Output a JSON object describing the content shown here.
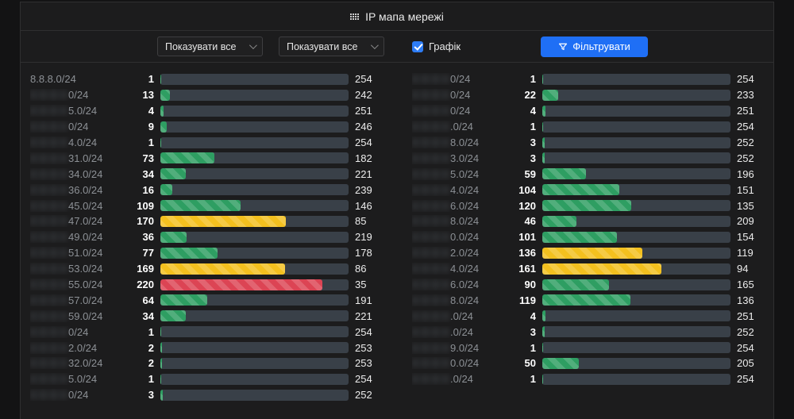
{
  "header": {
    "title": "IP мапа мережі",
    "icon": "grid-icon"
  },
  "toolbar": {
    "select1": {
      "value": "Показувати все"
    },
    "select2": {
      "value": "Показувати все"
    },
    "checkbox": {
      "label": "Графік",
      "checked": true
    },
    "filter_button": {
      "label": "Фільтрувати",
      "icon": "funnel-icon"
    }
  },
  "colors": {
    "green": "#2e9e62",
    "yellow": "#f3c01f",
    "red": "#dc4454",
    "track": "#394048",
    "accent_blue": "#1f6ff5"
  },
  "thresholds": {
    "yellow_min": 128,
    "red_min": 200
  },
  "scale_max": 255,
  "columns": {
    "left": [
      {
        "label": "8.8.8.0/24",
        "redacted": false,
        "used": 1,
        "free": 254
      },
      {
        "label": "0/24",
        "redacted": true,
        "used": 13,
        "free": 242
      },
      {
        "label": "5.0/24",
        "redacted": true,
        "used": 4,
        "free": 251
      },
      {
        "label": "0/24",
        "redacted": true,
        "used": 9,
        "free": 246
      },
      {
        "label": "4.0/24",
        "redacted": true,
        "used": 1,
        "free": 254
      },
      {
        "label": "31.0/24",
        "redacted": true,
        "used": 73,
        "free": 182
      },
      {
        "label": "34.0/24",
        "redacted": true,
        "used": 34,
        "free": 221
      },
      {
        "label": "36.0/24",
        "redacted": true,
        "used": 16,
        "free": 239
      },
      {
        "label": "45.0/24",
        "redacted": true,
        "used": 109,
        "free": 146
      },
      {
        "label": "47.0/24",
        "redacted": true,
        "used": 170,
        "free": 85
      },
      {
        "label": "49.0/24",
        "redacted": true,
        "used": 36,
        "free": 219
      },
      {
        "label": "51.0/24",
        "redacted": true,
        "used": 77,
        "free": 178
      },
      {
        "label": "53.0/24",
        "redacted": true,
        "used": 169,
        "free": 86
      },
      {
        "label": "55.0/24",
        "redacted": true,
        "used": 220,
        "free": 35
      },
      {
        "label": "57.0/24",
        "redacted": true,
        "used": 64,
        "free": 191
      },
      {
        "label": "59.0/24",
        "redacted": true,
        "used": 34,
        "free": 221
      },
      {
        "label": "0/24",
        "redacted": true,
        "used": 1,
        "free": 254
      },
      {
        "label": "2.0/24",
        "redacted": true,
        "used": 2,
        "free": 253
      },
      {
        "label": "32.0/24",
        "redacted": true,
        "used": 2,
        "free": 253
      },
      {
        "label": "5.0/24",
        "redacted": true,
        "used": 1,
        "free": 254
      },
      {
        "label": "0/24",
        "redacted": true,
        "used": 3,
        "free": 252
      }
    ],
    "right": [
      {
        "label": "0/24",
        "redacted": true,
        "used": 1,
        "free": 254
      },
      {
        "label": "0/24",
        "redacted": true,
        "used": 22,
        "free": 233
      },
      {
        "label": "0/24",
        "redacted": true,
        "used": 4,
        "free": 251
      },
      {
        "label": ".0/24",
        "redacted": true,
        "used": 1,
        "free": 254
      },
      {
        "label": "8.0/24",
        "redacted": true,
        "used": 3,
        "free": 252
      },
      {
        "label": "3.0/24",
        "redacted": true,
        "used": 3,
        "free": 252
      },
      {
        "label": "5.0/24",
        "redacted": true,
        "used": 59,
        "free": 196
      },
      {
        "label": "4.0/24",
        "redacted": true,
        "used": 104,
        "free": 151
      },
      {
        "label": "6.0/24",
        "redacted": true,
        "used": 120,
        "free": 135
      },
      {
        "label": "8.0/24",
        "redacted": true,
        "used": 46,
        "free": 209
      },
      {
        "label": "0.0/24",
        "redacted": true,
        "used": 101,
        "free": 154
      },
      {
        "label": "2.0/24",
        "redacted": true,
        "used": 136,
        "free": 119
      },
      {
        "label": "4.0/24",
        "redacted": true,
        "used": 161,
        "free": 94
      },
      {
        "label": "6.0/24",
        "redacted": true,
        "used": 90,
        "free": 165
      },
      {
        "label": "8.0/24",
        "redacted": true,
        "used": 119,
        "free": 136
      },
      {
        "label": ".0/24",
        "redacted": true,
        "used": 4,
        "free": 251
      },
      {
        "label": ".0/24",
        "redacted": true,
        "used": 3,
        "free": 252
      },
      {
        "label": "9.0/24",
        "redacted": true,
        "used": 1,
        "free": 254
      },
      {
        "label": "0.0/24",
        "redacted": true,
        "used": 50,
        "free": 205
      },
      {
        "label": ".0/24",
        "redacted": true,
        "used": 1,
        "free": 254
      }
    ]
  }
}
